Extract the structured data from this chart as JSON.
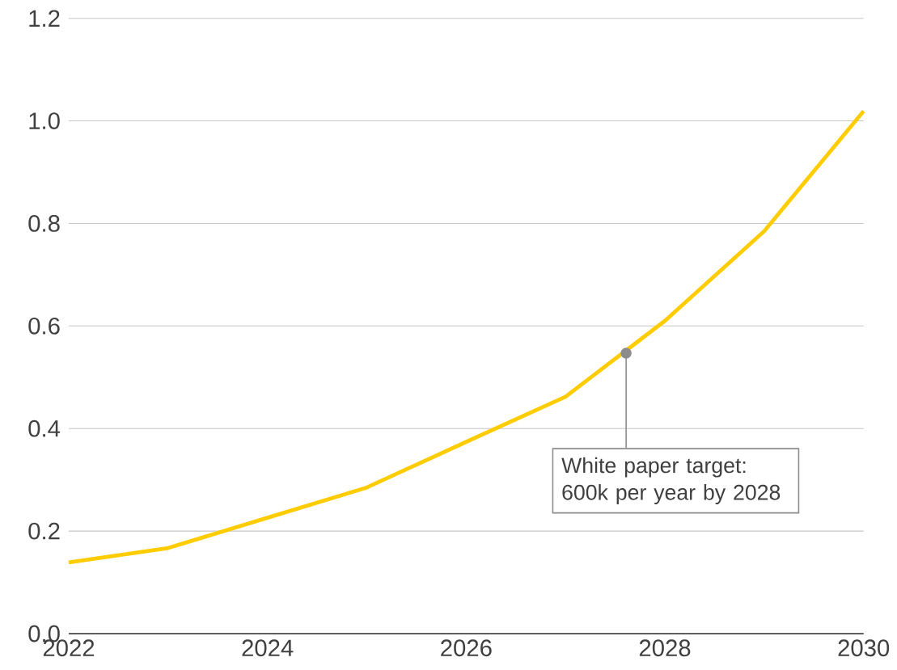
{
  "chart_data": {
    "type": "line",
    "x": [
      2022,
      2023,
      2024,
      2025,
      2026,
      2027,
      2028,
      2029,
      2030
    ],
    "series": [
      {
        "color": "#ffcc00",
        "values": [
          0.139,
          0.167,
          0.226,
          0.285,
          0.374,
          0.462,
          0.61,
          0.785,
          1.019
        ]
      }
    ],
    "xlim": [
      2022,
      2030
    ],
    "ylim": [
      0,
      1.2
    ],
    "xticks": [
      2022,
      2024,
      2026,
      2028,
      2030
    ],
    "yticks": [
      {
        "value": 0,
        "label": "0.0"
      },
      {
        "value": 0.2,
        "label": "0.2"
      },
      {
        "value": 0.4,
        "label": "0.4"
      },
      {
        "value": 0.6,
        "label": "0.6"
      },
      {
        "value": 0.8,
        "label": "0.8"
      },
      {
        "value": 1.0,
        "label": "1.0"
      },
      {
        "value": 1.2,
        "label": "1.2"
      }
    ],
    "grid": "y",
    "marker": "none",
    "line_style": "solid",
    "annotations": [
      {
        "text": "White paper target: 600k per year by 2028",
        "x": 2027.61,
        "y": 0.547
      }
    ]
  }
}
